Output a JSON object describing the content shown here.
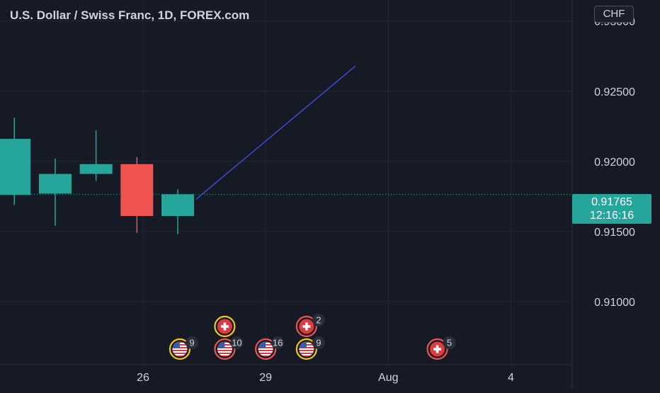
{
  "header": {
    "title": "U.S. Dollar / Swiss Franc, 1D, FOREX.com",
    "currency_badge": "CHF"
  },
  "current_price": {
    "price": "0.91765",
    "countdown": "12:16:16",
    "value": 0.91765
  },
  "colors": {
    "background": "#161a25",
    "grid": "#232734",
    "up": "#26a69a",
    "down": "#ef5350",
    "trendline": "#3d5afe",
    "text": "#d1d4dc"
  },
  "chart_data": {
    "type": "candlestick",
    "title": "U.S. Dollar / Swiss Franc, 1D, FOREX.com",
    "y_ticks": [
      "0.93000",
      "0.92500",
      "0.92000",
      "0.91500",
      "0.91000"
    ],
    "y_tick_values": [
      0.93,
      0.925,
      0.92,
      0.915,
      0.91
    ],
    "ylim": [
      0.9055,
      0.9315
    ],
    "x_ticks": [
      "26",
      "29",
      "Aug",
      "4"
    ],
    "x_tick_days": [
      26,
      29,
      32,
      35
    ],
    "xlim": [
      22.5,
      36.5
    ],
    "grid": true,
    "candles": [
      {
        "day": 22.85,
        "open": 0.9176,
        "high": 0.9231,
        "low": 0.9169,
        "close": 0.9216
      },
      {
        "day": 23.85,
        "open": 0.9177,
        "high": 0.9202,
        "low": 0.9154,
        "close": 0.9191
      },
      {
        "day": 24.85,
        "open": 0.9191,
        "high": 0.9222,
        "low": 0.9186,
        "close": 0.9198
      },
      {
        "day": 25.85,
        "open": 0.9198,
        "high": 0.9203,
        "low": 0.9149,
        "close": 0.9161
      },
      {
        "day": 26.85,
        "open": 0.9161,
        "high": 0.918,
        "low": 0.9148,
        "close": 0.91765
      }
    ],
    "trend_line": {
      "from": {
        "day": 27.3,
        "value": 0.9173
      },
      "to": {
        "day": 31.2,
        "value": 0.9268
      }
    },
    "events": [
      {
        "flag": "us",
        "day": 26.9,
        "row": "lower",
        "ring": "#f0c419",
        "count": "9"
      },
      {
        "flag": "us",
        "day": 28.0,
        "row": "lower",
        "ring": "#ef5350",
        "count": "10"
      },
      {
        "flag": "us",
        "day": 29.0,
        "row": "lower",
        "ring": "#ef5350",
        "count": "16"
      },
      {
        "flag": "us",
        "day": 30.0,
        "row": "lower",
        "ring": "#f0c419",
        "count": "9"
      },
      {
        "flag": "ch",
        "day": 28.0,
        "row": "upper",
        "ring": "#f0c419",
        "count": ""
      },
      {
        "flag": "ch",
        "day": 30.0,
        "row": "upper",
        "ring": "#ef5350",
        "count": "2"
      },
      {
        "flag": "ch",
        "day": 33.2,
        "row": "lower",
        "ring": "#ef5350",
        "count": "5"
      }
    ]
  }
}
